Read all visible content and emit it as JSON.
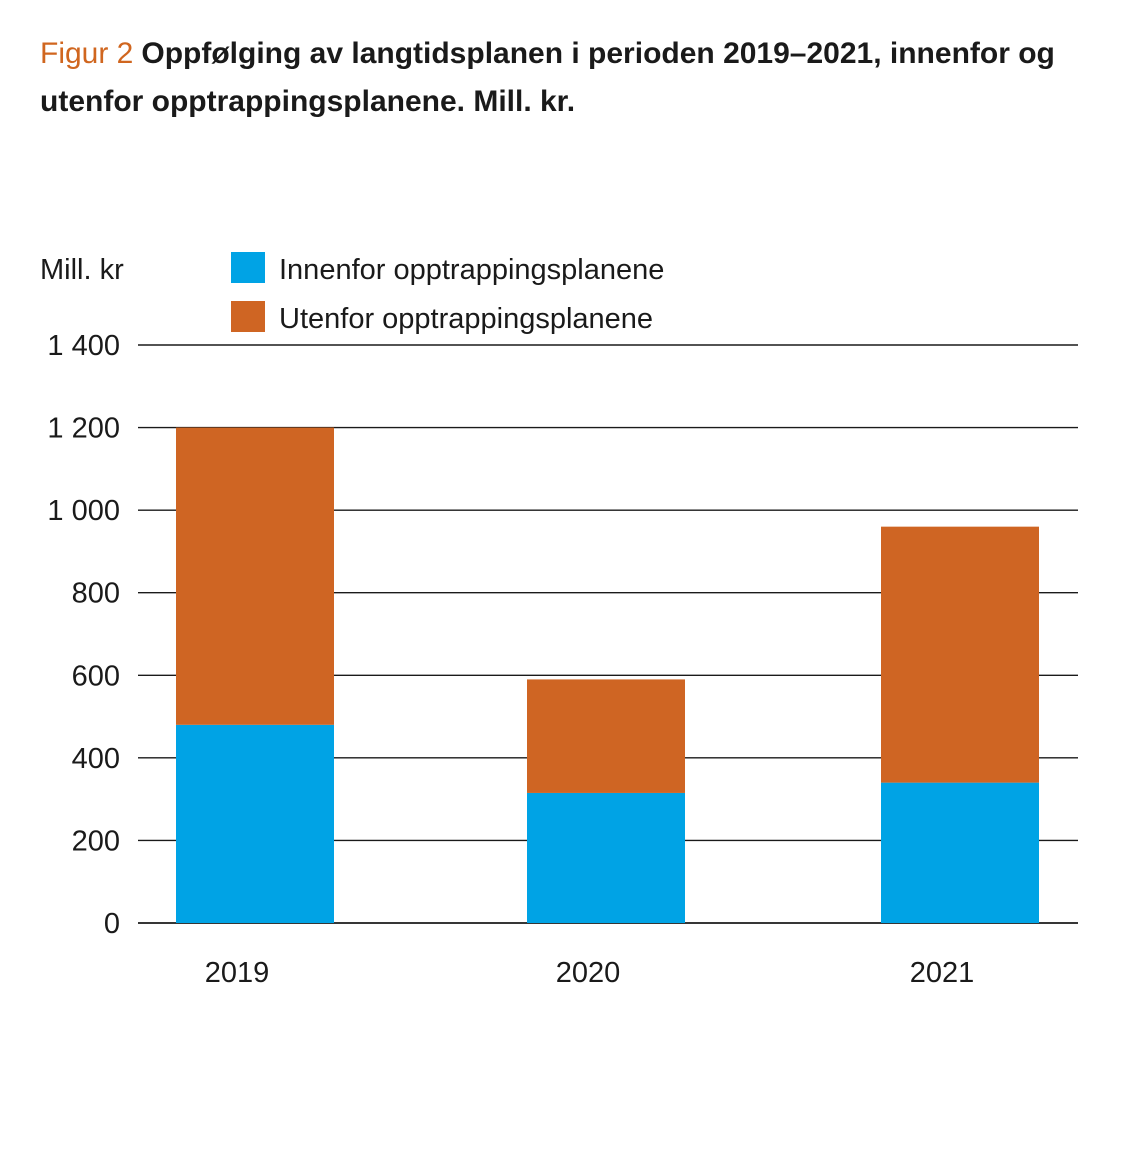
{
  "title": {
    "label": "Figur 2",
    "text": "Oppfølging av langtidsplanen i perioden 2019–2021, innenfor og utenfor opptrappingsplanene. Mill. kr."
  },
  "chart_data": {
    "type": "bar",
    "stacked": true,
    "title": "Oppfølging av langtidsplanen i perioden 2019–2021, innenfor og utenfor opptrappingsplanene. Mill. kr.",
    "ylabel": "Mill. kr",
    "xlabel": "",
    "categories": [
      "2019",
      "2020",
      "2021"
    ],
    "series": [
      {
        "name": "Innenfor opptrappingsplanene",
        "color": "#00a3e5",
        "values": [
          480,
          315,
          340
        ]
      },
      {
        "name": "Utenfor opptrappingsplanene",
        "color": "#cf6523",
        "values": [
          720,
          275,
          620
        ]
      }
    ],
    "ylim": [
      0,
      1400
    ],
    "yticks": [
      0,
      200,
      400,
      600,
      800,
      1000,
      1200,
      1400
    ],
    "ytick_labels": [
      "0",
      "200",
      "400",
      "600",
      "800",
      "1 000",
      "1 200",
      "1 400"
    ],
    "grid": true,
    "legend_position": "top-left"
  }
}
